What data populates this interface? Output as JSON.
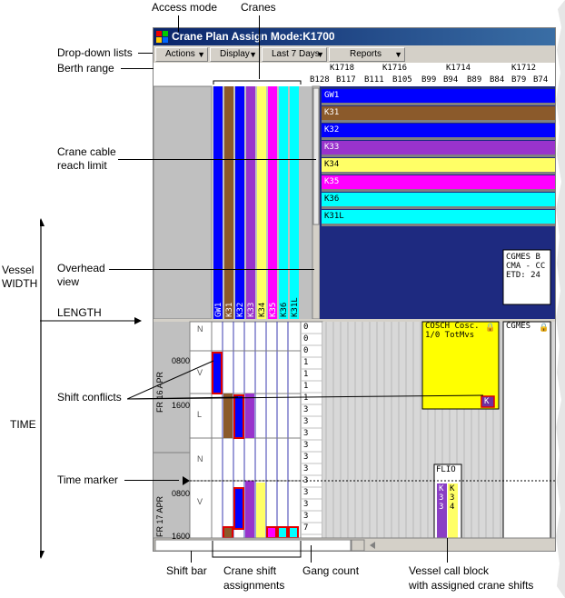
{
  "window": {
    "title": "Crane Plan Assign Mode:K1700"
  },
  "toolbar": {
    "dropdowns": [
      {
        "label": "Actions"
      },
      {
        "label": "Display"
      },
      {
        "label": "Last 7 Days"
      },
      {
        "label": "Reports"
      }
    ]
  },
  "berth_ruler": {
    "top_labels": [
      "K1718",
      "K1716",
      "K1714",
      "K1712"
    ],
    "bottom_labels": [
      "B128",
      "B117",
      "B111",
      "B105",
      "B99",
      "B94",
      "B89",
      "B84",
      "B79",
      "B74"
    ]
  },
  "cranes": {
    "labels": [
      "GW1",
      "K31",
      "K32",
      "K33",
      "K34",
      "K35",
      "K36",
      "K31L"
    ],
    "colors": [
      "#0000ff",
      "#8b5a2b",
      "#0000ff",
      "#9933cc",
      "#ffff66",
      "#ff00ff",
      "#00ffff",
      "#00ffff"
    ]
  },
  "time_axis": {
    "days": [
      "FR 16 APR",
      "FR 17 APR"
    ],
    "times": [
      "0800",
      "1600",
      "0800",
      "1600"
    ],
    "shifts": [
      "N",
      "V",
      "L",
      "N",
      "V"
    ]
  },
  "gang_counts": [
    "0",
    "0",
    "0",
    "1",
    "1",
    "1",
    "1",
    "3",
    "3",
    "3",
    "3",
    "3",
    "3",
    "3",
    "3",
    "3",
    "3",
    "7"
  ],
  "vessels": {
    "cosch": {
      "line1": "COSCH Cosc.",
      "line2": "1/0 TotMvs",
      "badge": "K"
    },
    "cgmes_timeline": {
      "label": "CGMES"
    },
    "cgmes_overhead": {
      "line1": "CGMES B",
      "line2": "CMA - CC",
      "line3": "ETD: 24"
    },
    "flio": {
      "label": "FLIO",
      "col1": "K\n3\n3",
      "col2": "K\n3\n4"
    }
  },
  "callouts": {
    "access_mode": "Access mode",
    "cranes": "Cranes",
    "dropdown_lists": "Drop-down lists",
    "berth_range": "Berth range",
    "cable_limit_1": "Crane cable",
    "cable_limit_2": "reach limit",
    "vessel_width_1": "Vessel",
    "vessel_width_2": "WIDTH",
    "overhead_1": "Overhead",
    "overhead_2": "view",
    "length": "LENGTH",
    "shift_conflicts": "Shift conflicts",
    "time": "TIME",
    "time_marker": "Time marker",
    "shift_bar": "Shift bar",
    "crane_shift_1": "Crane shift",
    "crane_shift_2": "assignments",
    "gang_count": "Gang count",
    "vessel_call_1": "Vessel call block",
    "vessel_call_2": "with assigned crane shifts"
  }
}
